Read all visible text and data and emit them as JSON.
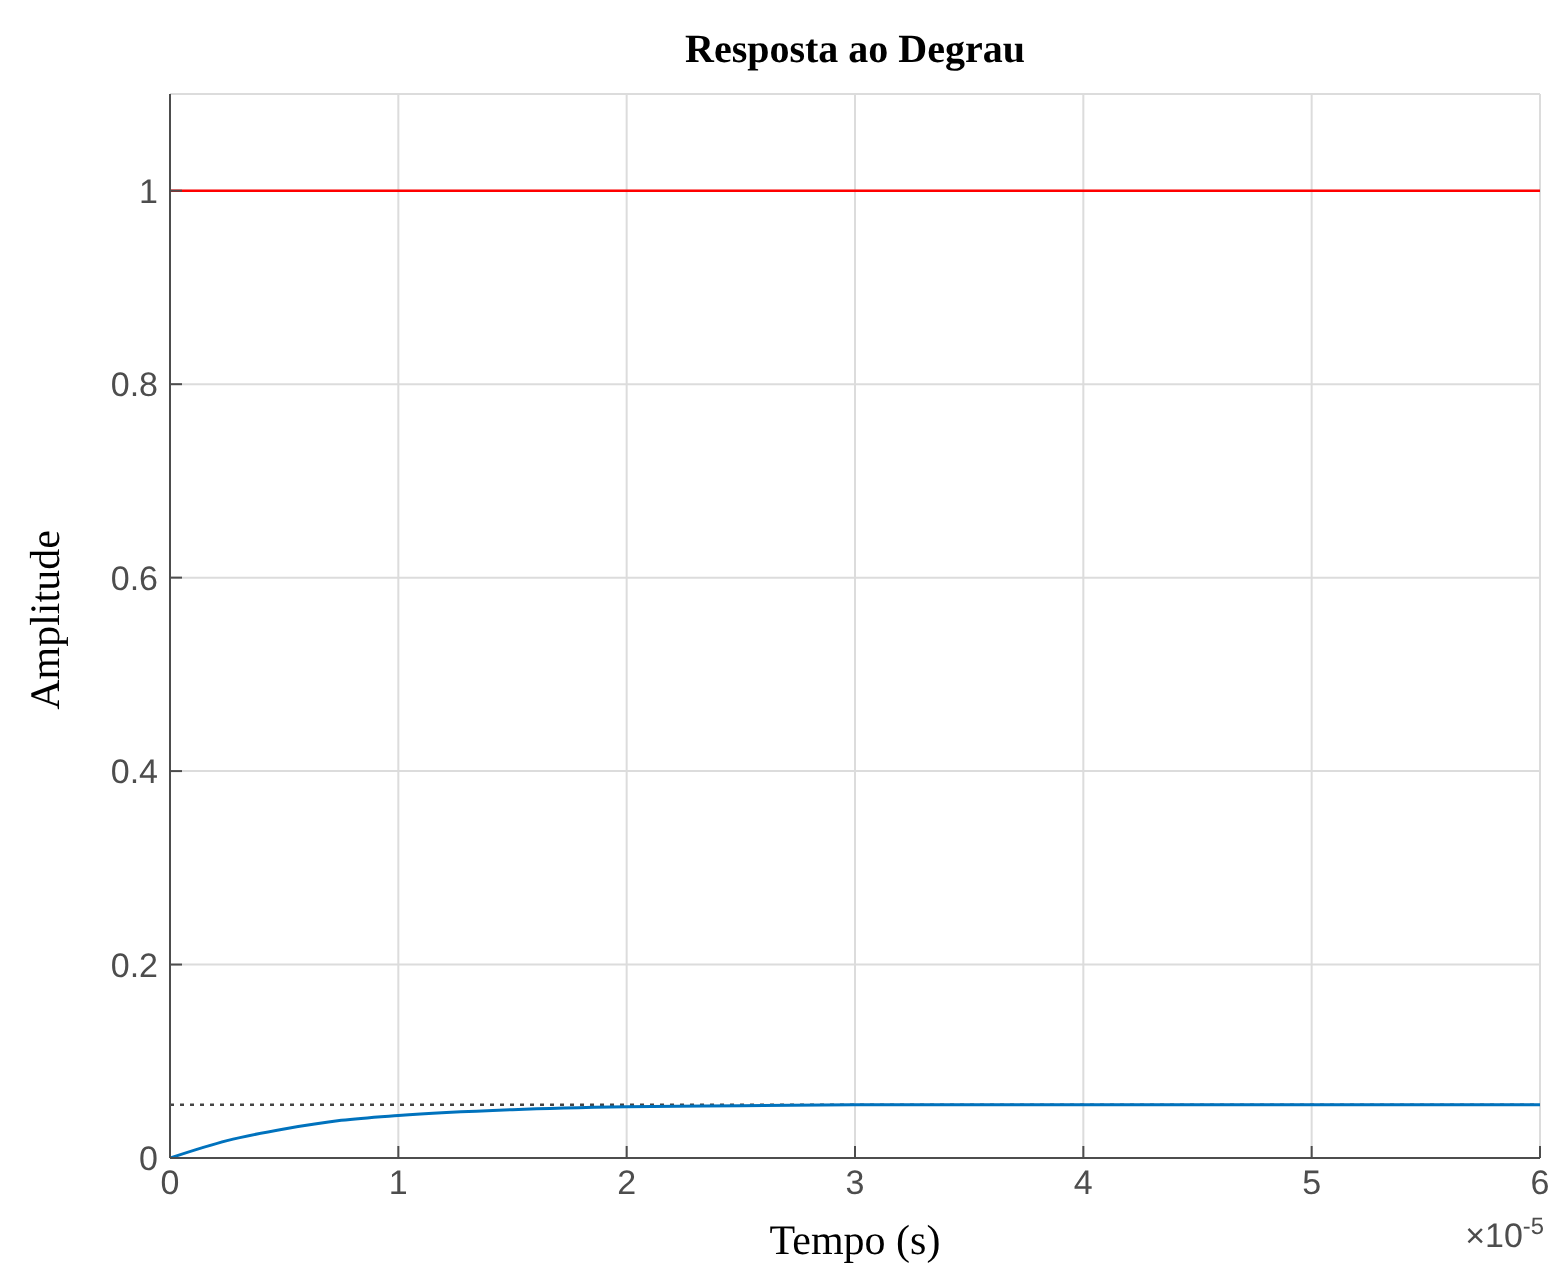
{
  "chart_data": {
    "type": "line",
    "title": "Resposta ao Degrau",
    "xlabel": "Tempo (s)",
    "ylabel": "Amplitude",
    "x": [
      0,
      0.25,
      0.5,
      0.75,
      1,
      1.5,
      2,
      2.5,
      3,
      4,
      5,
      6
    ],
    "series": [
      {
        "color": "#0072bd",
        "values": [
          0,
          0.018,
          0.03,
          0.039,
          0.044,
          0.05,
          0.053,
          0.054,
          0.055,
          0.055,
          0.055,
          0.055
        ]
      }
    ],
    "xlim": [
      0,
      6
    ],
    "xticks": [
      0,
      1,
      2,
      3,
      4,
      5,
      6
    ],
    "ylim": [
      0,
      1.1
    ],
    "yticks": [
      0,
      0.2,
      0.4,
      0.6,
      0.8,
      1
    ],
    "ref_lines": [
      {
        "axis": "y",
        "value": 1,
        "color": "#ff0000",
        "line_style": "solid"
      },
      {
        "axis": "y",
        "value": 0.055,
        "color": "#444444",
        "line_style": "dotted"
      }
    ],
    "annotations": [
      "×10$^{-5}$"
    ],
    "grid": true,
    "marker": "none",
    "line_style": "solid"
  }
}
